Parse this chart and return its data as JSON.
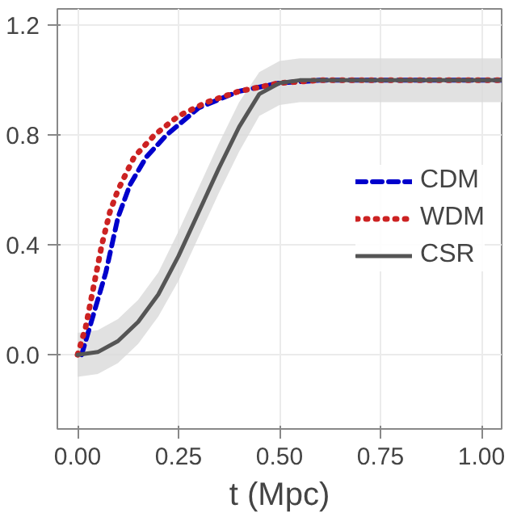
{
  "chart_data": {
    "type": "line",
    "xlabel": "t (Mpc)",
    "xlim": [
      -0.05,
      1.05
    ],
    "ylim": [
      -0.27,
      1.26
    ],
    "xticks": [
      {
        "value": 0,
        "label": "0.00"
      },
      0.25,
      {
        "value": 0.5,
        "label": "0.50"
      },
      0.75,
      {
        "value": 1,
        "label": "1.00"
      }
    ],
    "yticks": [
      {
        "value": 0,
        "label": "0.0"
      },
      0.4,
      0.8,
      1.2
    ],
    "grid": true,
    "legend": "right",
    "series": [
      {
        "name": "CDM",
        "color": "#0000cc",
        "line_style": "dashed",
        "x": [
          0.01,
          0.03,
          0.05,
          0.07,
          0.085,
          0.1,
          0.13,
          0.17,
          0.22,
          0.3,
          0.4,
          0.5,
          0.6,
          1.05
        ],
        "values": [
          0,
          0.1,
          0.2,
          0.3,
          0.4,
          0.5,
          0.62,
          0.72,
          0.8,
          0.9,
          0.96,
          0.99,
          1.0,
          1.0
        ]
      },
      {
        "name": "WDM",
        "color": "#cc2222",
        "line_style": "dotted",
        "x": [
          0,
          0.02,
          0.04,
          0.06,
          0.08,
          0.1,
          0.14,
          0.19,
          0.25,
          0.32,
          0.4,
          0.5,
          0.6,
          1.05
        ],
        "values": [
          0,
          0.1,
          0.25,
          0.4,
          0.52,
          0.6,
          0.72,
          0.8,
          0.87,
          0.92,
          0.96,
          0.99,
          1.0,
          1.0
        ]
      },
      {
        "name": "CSR",
        "color": "#555555",
        "line_style": "solid",
        "x": [
          0,
          0.05,
          0.1,
          0.15,
          0.2,
          0.25,
          0.3,
          0.35,
          0.4,
          0.45,
          0.5,
          0.55,
          1.05
        ],
        "values": [
          0,
          0.01,
          0.05,
          0.12,
          0.22,
          0.36,
          0.52,
          0.68,
          0.83,
          0.95,
          0.99,
          1.0,
          1.0
        ],
        "lower": [
          -0.08,
          -0.07,
          -0.03,
          0.04,
          0.14,
          0.27,
          0.43,
          0.59,
          0.74,
          0.87,
          0.91,
          0.92,
          0.92
        ],
        "upper": [
          0.08,
          0.09,
          0.13,
          0.2,
          0.3,
          0.45,
          0.61,
          0.77,
          0.92,
          1.03,
          1.07,
          1.08,
          1.08
        ]
      }
    ]
  }
}
